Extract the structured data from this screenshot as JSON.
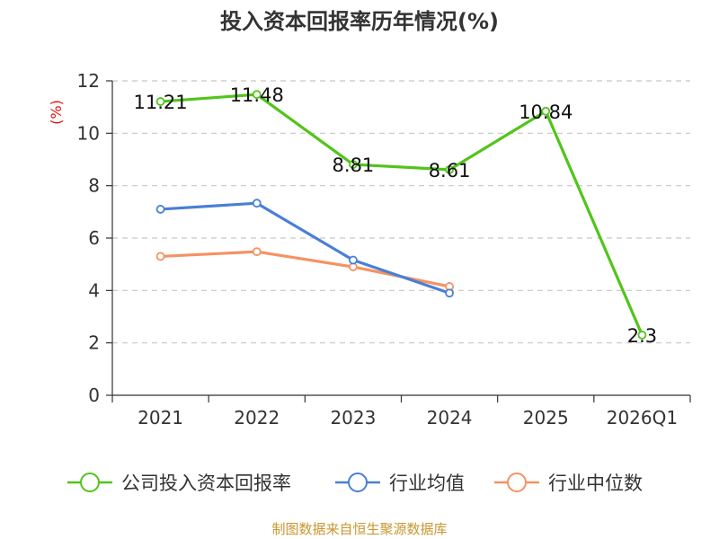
{
  "chart_data": {
    "type": "line",
    "title": "投入资本回报率历年情况(%)",
    "ylabel": "(%)",
    "xlabel": "",
    "categories": [
      "2021",
      "2022",
      "2023",
      "2024",
      "2025",
      "2026Q1"
    ],
    "ylim": [
      0,
      12
    ],
    "yticks": [
      0,
      2,
      4,
      6,
      8,
      10,
      12
    ],
    "grid": true,
    "legend_position": "bottom",
    "series": [
      {
        "name": "公司投入资本回报率",
        "color": "#52c41a",
        "values": [
          11.21,
          11.48,
          8.81,
          8.61,
          10.84,
          2.3
        ],
        "labels": [
          "11.21",
          "11.48",
          "8.81",
          "8.61",
          "10.84",
          "2.3"
        ]
      },
      {
        "name": "行业均值",
        "color": "#4a7fd6",
        "values": [
          7.1,
          7.33,
          5.16,
          3.9,
          null,
          null
        ]
      },
      {
        "name": "行业中位数",
        "color": "#f59262",
        "values": [
          5.3,
          5.48,
          4.9,
          4.15,
          null,
          null
        ]
      }
    ]
  },
  "source": "制图数据来自恒生聚源数据库"
}
